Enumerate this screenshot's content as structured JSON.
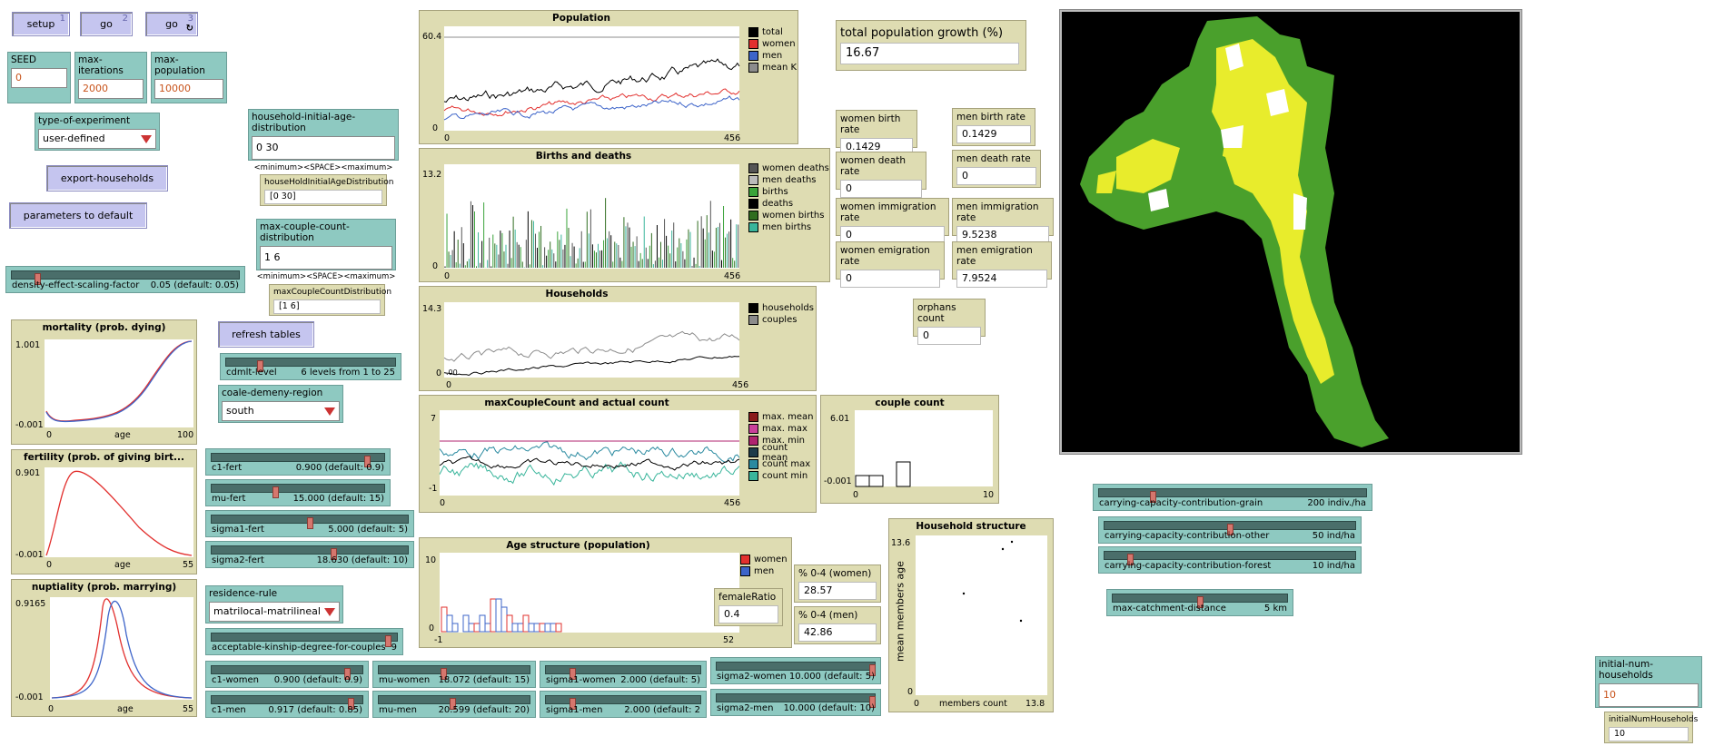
{
  "buttons": {
    "setup": "setup",
    "setup_key": "1",
    "go": "go",
    "go_key": "2",
    "go_forever": "go",
    "go_forever_key": "3",
    "go_forever_icon": "↻",
    "export": "export-households",
    "defaults": "parameters to default",
    "refresh": "refresh tables"
  },
  "inputs": {
    "seed": {
      "label": "SEED",
      "value": "0"
    },
    "max_iterations": {
      "label": "max-iterations",
      "value": "2000"
    },
    "max_population": {
      "label": "max-population",
      "value": "10000"
    },
    "household_age": {
      "label": "household-initial-age-distribution",
      "value": "0 30",
      "note": "<minimum><SPACE><maximum>"
    },
    "max_couple": {
      "label": "max-couple-count-distribution",
      "value": "1 6",
      "note": "<minimum><SPACE><maximum>"
    },
    "initial_num": {
      "label": "initial-num-households",
      "value": "10"
    }
  },
  "choosers": {
    "experiment": {
      "label": "type-of-experiment",
      "value": "user-defined"
    },
    "coale": {
      "label": "coale-demeny-region",
      "value": "south"
    },
    "residence": {
      "label": "residence-rule",
      "value": "matrilocal-matrilineal"
    }
  },
  "sliders": {
    "density": {
      "name": "density-effect-scaling-factor",
      "value": "0.05 (default: 0.05)",
      "fraction": 0.11
    },
    "cdmlt": {
      "name": "cdmlt-level",
      "value": "6 levels from 1 to 25",
      "fraction": 0.2
    },
    "c1_fert": {
      "name": "c1-fert",
      "value": "0.900 (default: 0.9)",
      "fraction": 0.9
    },
    "mu_fert": {
      "name": "mu-fert",
      "value": "15.000 (default: 15)",
      "fraction": 0.37
    },
    "sigma1_fert": {
      "name": "sigma1-fert",
      "value": "5.000 (default: 5)",
      "fraction": 0.5
    },
    "sigma2_fert": {
      "name": "sigma2-fert",
      "value": "18.630 (default: 10)",
      "fraction": 0.62
    },
    "kinship": {
      "name": "acceptable-kinship-degree-for-couples",
      "value": "9",
      "fraction": 0.95
    },
    "c1_women": {
      "name": "c1-women",
      "value": "0.900 (default: 0.9)",
      "fraction": 0.9
    },
    "c1_men": {
      "name": "c1-men",
      "value": "0.917 (default: 0.85)",
      "fraction": 0.92
    },
    "mu_women": {
      "name": "mu-women",
      "value": "18.072 (default: 15)",
      "fraction": 0.43
    },
    "mu_men": {
      "name": "mu-men",
      "value": "20.599 (default: 20)",
      "fraction": 0.49
    },
    "sigma1_women": {
      "name": "sigma1-women",
      "value": "2.000 (default: 5)",
      "fraction": 0.17
    },
    "sigma1_men": {
      "name": "sigma1-men",
      "value": "2.000 (default: 2",
      "fraction": 0.17
    },
    "sigma2_women": {
      "name": "sigma2-women",
      "value": "10.000 (default: 5)",
      "fraction": 0.98
    },
    "sigma2_men": {
      "name": "sigma2-men",
      "value": "10.000 (default: 10)",
      "fraction": 0.98
    },
    "cc_grain": {
      "name": "carrying-capacity-contribution-grain",
      "value": "200 indiv./ha",
      "fraction": 0.2
    },
    "cc_other": {
      "name": "carrying-capacity-contribution-other",
      "value": "50 ind/ha",
      "fraction": 0.5
    },
    "cc_forest": {
      "name": "carrying-capacity-contribution-forest",
      "value": "10 ind/ha",
      "fraction": 0.1
    },
    "catchment": {
      "name": "max-catchment-distance",
      "value": "5 km",
      "fraction": 0.5
    }
  },
  "monitors": {
    "household_age": {
      "label": "houseHoldInitialAgeDistribution",
      "value": "[0 30]"
    },
    "max_couple": {
      "label": "maxCoupleCountDistribution",
      "value": "[1 6]"
    },
    "growth": {
      "label": "total population growth (%)",
      "value": "16.67"
    },
    "women_birth": {
      "label": "women birth rate",
      "value": "0.1429"
    },
    "men_birth": {
      "label": "men birth rate",
      "value": "0.1429"
    },
    "women_death": {
      "label": "women death rate",
      "value": "0"
    },
    "men_death": {
      "label": "men death rate",
      "value": "0"
    },
    "women_immig": {
      "label": "women immigration rate",
      "value": "0"
    },
    "men_immig": {
      "label": "men immigration rate",
      "value": "9.5238"
    },
    "women_emig": {
      "label": "women emigration rate",
      "value": "0"
    },
    "men_emig": {
      "label": "men emigration rate",
      "value": "7.9524"
    },
    "orphans": {
      "label": "orphans count",
      "value": "0"
    },
    "female_ratio": {
      "label": "femaleRatio",
      "value": "0.4"
    },
    "pct_women": {
      "label": "% 0-4 (women)",
      "value": "28.57"
    },
    "pct_men": {
      "label": "% 0-4 (men)",
      "value": "42.86"
    },
    "initial_num": {
      "label": "initialNumHouseholds",
      "value": "10"
    }
  },
  "colors": {
    "black": "#000000",
    "red": "#e2302e",
    "blue": "#3d64c9",
    "gray": "#8c8c8c",
    "darkgray": "#555555",
    "lightgray": "#bbbbbb",
    "green": "#3aa33a",
    "darkgreen": "#2f6d1f",
    "turquoise": "#39b59b",
    "magenta": "#b0236f",
    "teal": "#2a8aa0"
  },
  "chart_data": [
    {
      "type": "line",
      "title": "Population",
      "x_ticks": [
        "0",
        "456"
      ],
      "y_ticks": [
        "60.4",
        "0"
      ],
      "series": [
        {
          "name": "total"
        },
        {
          "name": "women"
        },
        {
          "name": "men"
        },
        {
          "name": "mean K"
        }
      ]
    },
    {
      "type": "line",
      "title": "Births and deaths",
      "x_ticks": [
        "0",
        "456"
      ],
      "y_ticks": [
        "13.2",
        "0"
      ],
      "series": [
        {
          "name": "women deaths"
        },
        {
          "name": "men deaths"
        },
        {
          "name": "births"
        },
        {
          "name": "deaths"
        },
        {
          "name": "women births"
        },
        {
          "name": "men births"
        }
      ]
    },
    {
      "type": "line",
      "title": "Households",
      "x_ticks": [
        "0",
        "456"
      ],
      "y_ticks": [
        "14.3",
        "0"
      ],
      "y_extra": ".00",
      "series": [
        {
          "name": "households"
        },
        {
          "name": "couples"
        }
      ]
    },
    {
      "type": "line",
      "title": "maxCoupleCount and actual count",
      "x_ticks": [
        "0",
        "456"
      ],
      "y_ticks": [
        "7",
        "-1"
      ],
      "series": [
        {
          "name": "max. mean"
        },
        {
          "name": "max. max"
        },
        {
          "name": "max. min"
        },
        {
          "name": "count mean"
        },
        {
          "name": "count max"
        },
        {
          "name": "count min"
        }
      ]
    },
    {
      "type": "bar",
      "title": "couple count",
      "x_ticks": [
        "0",
        "10"
      ],
      "y_ticks": [
        "6.01",
        "-0.001"
      ]
    },
    {
      "type": "bar",
      "title": "Age structure (population)",
      "x_ticks": [
        "-1",
        "52"
      ],
      "y_ticks": [
        "10",
        "0"
      ],
      "series": [
        {
          "name": "women"
        },
        {
          "name": "men"
        }
      ]
    },
    {
      "type": "scatter",
      "title": "Household structure",
      "xlabel": "members count",
      "ylabel": "mean members age",
      "x_ticks": [
        "0",
        "13.8"
      ],
      "y_ticks": [
        "13.6",
        "0"
      ]
    },
    {
      "type": "line",
      "title": "mortality (prob. dying)",
      "xlabel": "age",
      "x_ticks": [
        "0",
        "100"
      ],
      "y_ticks": [
        "1.001",
        "-0.001"
      ]
    },
    {
      "type": "line",
      "title": "fertility (prob. of giving birt...",
      "xlabel": "age",
      "x_ticks": [
        "0",
        "55"
      ],
      "y_ticks": [
        "0.901",
        "-0.001"
      ]
    },
    {
      "type": "line",
      "title": "nuptiality (prob. marrying)",
      "xlabel": "age",
      "x_ticks": [
        "0",
        "55"
      ],
      "y_ticks": [
        "0.9165",
        "-0.001"
      ]
    }
  ]
}
